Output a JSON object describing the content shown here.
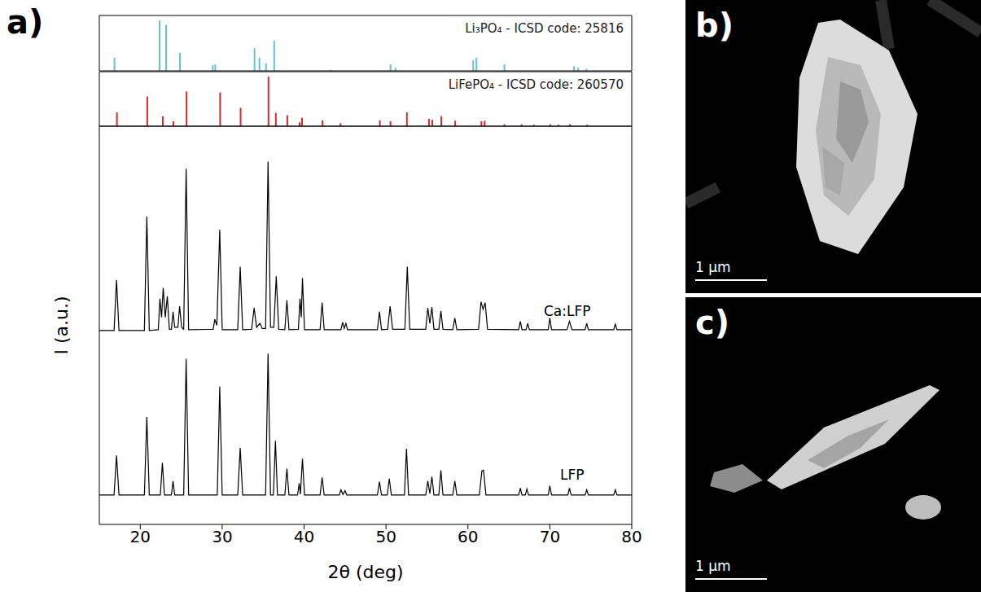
{
  "chart_data": [
    {
      "type": "bar",
      "title": "Li₃PO₄ - ICSD code: 25816",
      "color": "#62c3d2",
      "x": [
        16.8,
        22.3,
        23.1,
        24.8,
        28.8,
        29.1,
        33.9,
        34.5,
        35.3,
        36.3,
        43.2,
        50.5,
        51.1,
        60.6,
        61.0,
        64.4,
        72.9,
        73.4,
        74.4
      ],
      "values": [
        26,
        100,
        91,
        36,
        11,
        13,
        45,
        26,
        15,
        60,
        2,
        13,
        6,
        21,
        26,
        13,
        9,
        6,
        4
      ],
      "xlim": [
        15,
        80
      ],
      "ylim": [
        0,
        110
      ],
      "tick_labels": false
    },
    {
      "type": "bar",
      "title": "LiFePO₄ - ICSD code: 260570",
      "color": "#d42a2a",
      "x": [
        17.1,
        20.8,
        22.7,
        24.0,
        25.6,
        29.7,
        32.2,
        35.6,
        36.5,
        37.9,
        39.4,
        39.7,
        42.2,
        44.4,
        49.2,
        50.5,
        52.5,
        55.2,
        55.6,
        56.7,
        58.4,
        61.6,
        62.0,
        64.4,
        66.5,
        68.0,
        70.0,
        71.0,
        72.4,
        74.5
      ],
      "values": [
        28,
        60,
        20,
        10,
        70,
        68,
        37,
        100,
        27,
        22,
        8,
        17,
        12,
        6,
        12,
        10,
        28,
        15,
        13,
        20,
        11,
        10,
        11,
        4,
        4,
        3,
        4,
        3,
        4,
        3
      ],
      "xlim": [
        15,
        80
      ],
      "ylim": [
        0,
        110
      ],
      "tick_labels": false
    },
    {
      "type": "line",
      "xlabel": "2θ (deg)",
      "ylabel": "I (a.u.)",
      "xlim": [
        15,
        80
      ],
      "xticks": [
        20,
        30,
        40,
        50,
        60,
        70,
        80
      ],
      "ylim": [
        0,
        100
      ],
      "yticks": [],
      "tick_labels": "x",
      "series": [
        {
          "name": "Ca:LFP",
          "color": "#000000",
          "x": [
            15,
            16.8,
            17.1,
            17.4,
            20.5,
            20.8,
            21.1,
            22.2,
            22.4,
            22.6,
            22.8,
            23.05,
            23.3,
            23.55,
            23.8,
            24.0,
            24.2,
            24.6,
            24.8,
            25.05,
            25.3,
            25.6,
            25.9,
            28.9,
            29.1,
            29.35,
            29.7,
            30.0,
            31.9,
            32.2,
            32.5,
            33.6,
            33.9,
            34.2,
            34.6,
            34.9,
            35.3,
            35.6,
            35.9,
            36.3,
            36.6,
            36.9,
            37.65,
            37.9,
            38.15,
            39.3,
            39.5,
            39.65,
            39.8,
            40.05,
            41.95,
            42.2,
            42.45,
            44.5,
            44.7,
            44.9,
            45.1,
            45.3,
            48.95,
            49.2,
            49.45,
            50.2,
            50.5,
            50.8,
            52.3,
            52.6,
            52.9,
            54.85,
            55.1,
            55.35,
            55.6,
            55.85,
            56.45,
            56.7,
            56.95,
            58.15,
            58.4,
            58.65,
            61.3,
            61.6,
            61.85,
            62.1,
            62.4,
            66.2,
            66.4,
            66.6,
            67.1,
            67.3,
            67.5,
            69.8,
            70.0,
            70.2,
            72.1,
            72.4,
            72.7,
            74.3,
            74.5,
            74.7,
            77.8,
            78.0,
            78.2,
            80
          ],
          "values": [
            48.7,
            48.7,
            61.4,
            48.7,
            48.7,
            77.3,
            48.7,
            48.9,
            56.7,
            52.0,
            59.4,
            52.0,
            57.3,
            49.0,
            49.0,
            53.4,
            49.5,
            49.5,
            54.8,
            49.5,
            49.0,
            89.3,
            48.9,
            49.0,
            51.5,
            50.0,
            74.0,
            48.9,
            48.9,
            64.7,
            48.9,
            49.0,
            54.4,
            49.5,
            50.5,
            49.2,
            49.2,
            91.1,
            49.5,
            49.5,
            62.3,
            49.0,
            48.9,
            56.3,
            48.9,
            49.0,
            56.7,
            52.0,
            61.9,
            48.9,
            48.9,
            55.7,
            48.9,
            48.9,
            50.8,
            49.2,
            50.5,
            48.9,
            48.9,
            53.4,
            48.9,
            49.0,
            54.8,
            49.0,
            49.0,
            64.7,
            49.0,
            49.0,
            54.4,
            50.5,
            54.6,
            49.0,
            49.0,
            53.6,
            49.0,
            48.9,
            51.8,
            48.9,
            49.0,
            55.9,
            54.0,
            55.7,
            49.0,
            48.9,
            51.0,
            48.9,
            48.9,
            50.5,
            48.9,
            48.9,
            51.8,
            48.9,
            48.9,
            51.0,
            48.9,
            48.9,
            50.5,
            48.9,
            48.9,
            50.3,
            48.9,
            48.9
          ]
        },
        {
          "name": "LFP",
          "color": "#000000",
          "x": [
            15,
            16.8,
            17.1,
            17.4,
            20.5,
            20.8,
            21.1,
            22.45,
            22.7,
            22.95,
            23.8,
            24.0,
            24.2,
            25.3,
            25.6,
            25.9,
            29.4,
            29.7,
            30.0,
            31.9,
            32.2,
            32.5,
            35.3,
            35.6,
            35.9,
            36.25,
            36.5,
            36.75,
            37.65,
            37.9,
            38.15,
            39.2,
            39.4,
            39.55,
            39.8,
            40.05,
            41.95,
            42.2,
            42.45,
            44.3,
            44.5,
            44.75,
            45.0,
            45.2,
            48.95,
            49.2,
            49.45,
            50.15,
            50.4,
            50.65,
            52.25,
            52.5,
            52.75,
            54.85,
            55.1,
            55.35,
            55.6,
            55.85,
            56.45,
            56.7,
            56.95,
            58.15,
            58.4,
            58.65,
            61.4,
            61.7,
            61.9,
            62.2,
            66.2,
            66.4,
            66.6,
            67.0,
            67.2,
            67.4,
            69.8,
            70.0,
            70.2,
            72.2,
            72.4,
            72.6,
            74.3,
            74.5,
            74.7,
            77.8,
            78.0,
            78.2,
            80
          ],
          "values": [
            7.4,
            7.4,
            17.3,
            7.4,
            7.4,
            27.0,
            7.4,
            7.4,
            15.5,
            7.4,
            7.4,
            10.9,
            7.4,
            7.4,
            41.6,
            7.4,
            7.4,
            34.6,
            7.4,
            7.4,
            19.2,
            7.4,
            7.4,
            42.9,
            7.4,
            7.4,
            21.0,
            7.4,
            7.4,
            14.0,
            7.4,
            7.4,
            10.3,
            7.6,
            16.5,
            7.4,
            7.4,
            11.8,
            7.4,
            7.4,
            8.7,
            7.5,
            8.5,
            7.4,
            7.4,
            10.7,
            7.4,
            7.4,
            11.5,
            7.4,
            7.4,
            19.0,
            7.4,
            7.4,
            10.9,
            7.8,
            12.0,
            7.4,
            7.4,
            13.6,
            7.4,
            7.4,
            10.9,
            7.4,
            7.4,
            13.4,
            13.6,
            7.4,
            7.4,
            9.1,
            7.4,
            7.4,
            8.9,
            7.4,
            7.4,
            9.7,
            7.4,
            7.4,
            9.1,
            7.4,
            7.4,
            8.7,
            7.4,
            7.4,
            8.7,
            7.4,
            7.4
          ]
        }
      ]
    }
  ],
  "panels": [
    {
      "label": "a)"
    },
    {
      "label": "b)",
      "scale_bar": "1 µm"
    },
    {
      "label": "c)",
      "scale_bar": "1 µm"
    }
  ]
}
